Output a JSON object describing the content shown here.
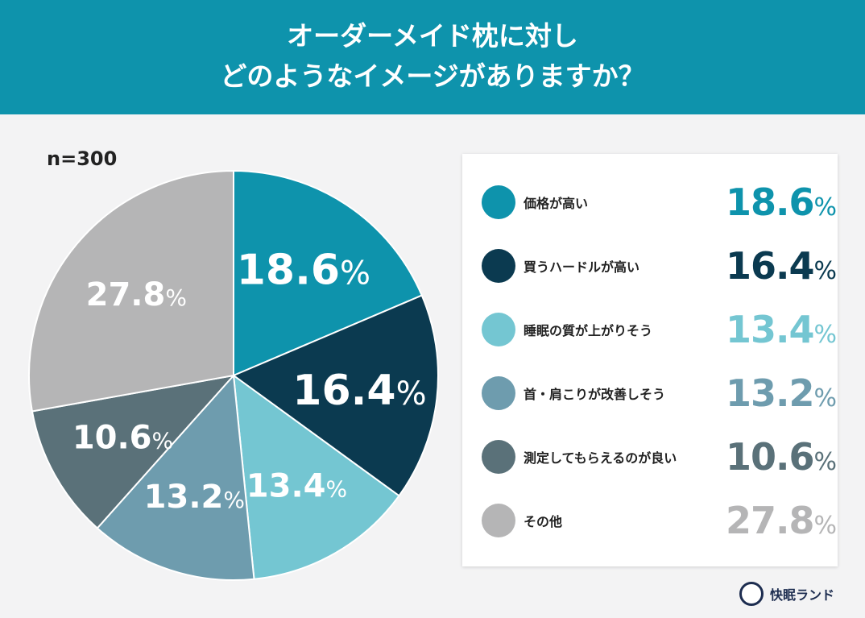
{
  "title_lines": [
    "オーダーメイド枕に対し",
    "どのようなイメージがありますか？"
  ],
  "sample_size": "n=300",
  "brand": "快眠ランド",
  "chart_data": {
    "type": "pie",
    "start": "top, clockwise",
    "unit": "%",
    "categories": [
      "価格が高い",
      "買うハードルが高い",
      "睡眠の質が上がりそう",
      "首・肩こりが改善しそう",
      "測定してもらえるのが良い",
      "その他"
    ],
    "values": [
      18.6,
      16.4,
      13.4,
      13.2,
      10.6,
      27.8
    ],
    "labels": [
      "18.6",
      "16.4",
      "13.4",
      "13.2",
      "10.6",
      "27.8"
    ],
    "colors": [
      "#0e93ac",
      "#0b3a50",
      "#74c6d2",
      "#6e9cae",
      "#5a7179",
      "#b5b5b6"
    ],
    "legend": "right"
  }
}
